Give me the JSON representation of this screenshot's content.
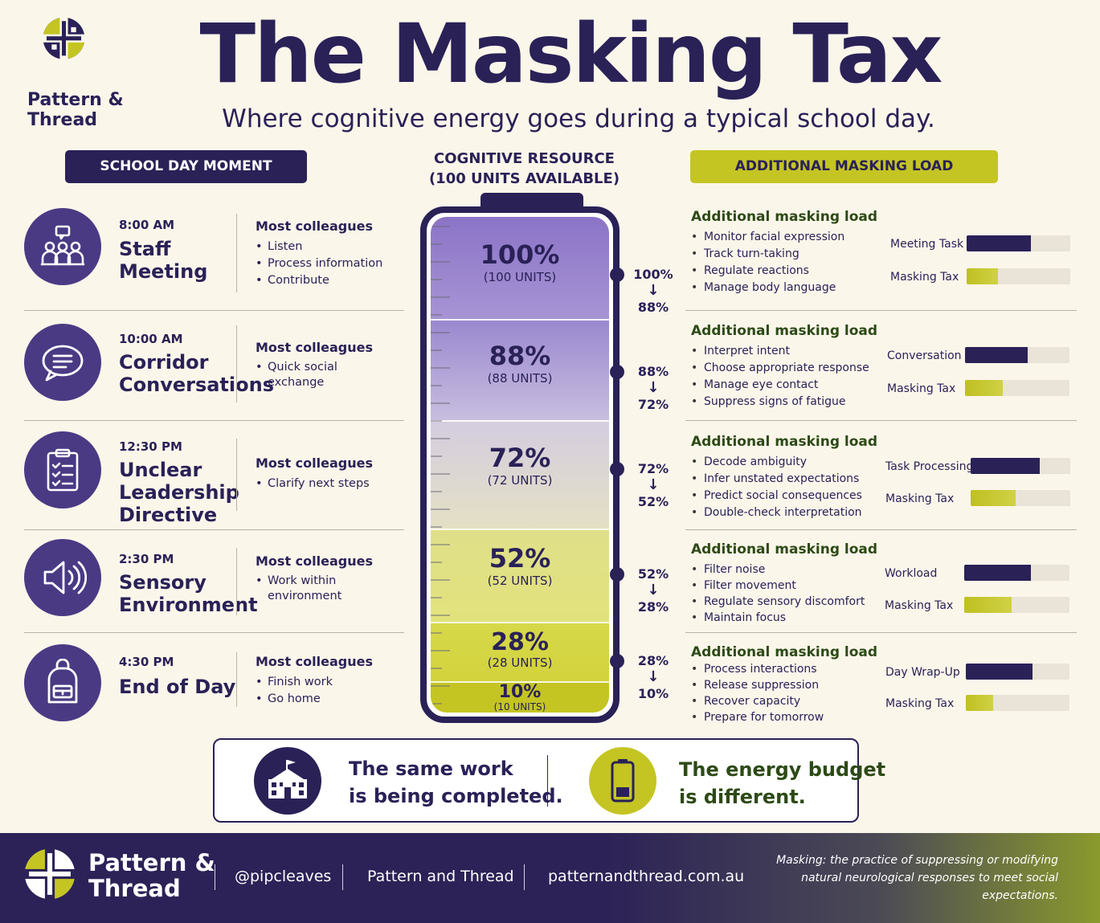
{
  "brand": {
    "name_line1": "Pattern &",
    "name_line2": "Thread"
  },
  "header": {
    "title": "The Masking Tax",
    "subtitle": "Where cognitive energy goes during a typical school day."
  },
  "columns": {
    "left": "SCHOOL DAY MOMENT",
    "middle_line1": "COGNITIVE RESOURCE",
    "middle_line2": "(100 UNITS AVAILABLE)",
    "right": "ADDITIONAL MASKING LOAD"
  },
  "moments": [
    {
      "time": "8:00 AM",
      "title": "Staff Meeting",
      "title_lines": [
        "Staff",
        "Meeting"
      ],
      "icon": "people-icon",
      "colleagues_heading": "Most colleagues",
      "colleagues": [
        "Listen",
        "Process information",
        "Contribute"
      ]
    },
    {
      "time": "10:00 AM",
      "title": "Corridor Conversations",
      "title_lines": [
        "Corridor",
        "Conversations"
      ],
      "icon": "chat-icon",
      "colleagues_heading": "Most colleagues",
      "colleagues": [
        "Quick social exchange"
      ]
    },
    {
      "time": "12:30 PM",
      "title": "Unclear Leadership Directive",
      "title_lines": [
        "Unclear",
        "Leadership",
        "Directive"
      ],
      "icon": "clipboard-icon",
      "colleagues_heading": "Most colleagues",
      "colleagues": [
        "Clarify next steps"
      ]
    },
    {
      "time": "2:30 PM",
      "title": "Sensory Environment",
      "title_lines": [
        "Sensory",
        "Environment"
      ],
      "icon": "speaker-icon",
      "colleagues_heading": "Most colleagues",
      "colleagues": [
        "Work within environment"
      ]
    },
    {
      "time": "4:30 PM",
      "title": "End of Day",
      "title_lines": [
        "End of Day"
      ],
      "icon": "backpack-icon",
      "colleagues_heading": "Most colleagues",
      "colleagues": [
        "Finish work",
        "Go home"
      ]
    }
  ],
  "battery": {
    "levels": [
      {
        "pct": "100%",
        "units": "(100 UNITS)"
      },
      {
        "pct": "88%",
        "units": "(88 UNITS)"
      },
      {
        "pct": "72%",
        "units": "(72 UNITS)"
      },
      {
        "pct": "52%",
        "units": "(52 UNITS)"
      },
      {
        "pct": "28%",
        "units": "(28 UNITS)"
      },
      {
        "pct": "10%",
        "units": "(10 UNITS)"
      }
    ],
    "transitions": [
      {
        "from": "100%",
        "arrow": "↓",
        "to": "88%"
      },
      {
        "from": "88%",
        "arrow": "↓",
        "to": "72%"
      },
      {
        "from": "72%",
        "arrow": "↓",
        "to": "52%"
      },
      {
        "from": "52%",
        "arrow": "↓",
        "to": "28%"
      },
      {
        "from": "28%",
        "arrow": "↓",
        "to": "10%"
      }
    ]
  },
  "masking": [
    {
      "heading": "Additional masking load",
      "items": [
        "Monitor facial expression",
        "Track turn-taking",
        "Regulate reactions",
        "Manage body language"
      ],
      "bars": [
        {
          "label": "Meeting Task",
          "value": 0.62
        },
        {
          "label": "Masking Tax",
          "value": 0.3
        }
      ]
    },
    {
      "heading": "Additional masking load",
      "items": [
        "Interpret intent",
        "Choose appropriate response",
        "Manage eye contact",
        "Suppress signs of fatigue"
      ],
      "bars": [
        {
          "label": "Conversation",
          "value": 0.6
        },
        {
          "label": "Masking Tax",
          "value": 0.36
        }
      ]
    },
    {
      "heading": "Additional masking load",
      "items": [
        "Decode ambiguity",
        "Infer unstated expectations",
        "Predict social consequences",
        "Double-check interpretation"
      ],
      "bars": [
        {
          "label": "Task Processing",
          "value": 0.69
        },
        {
          "label": "Masking Tax",
          "value": 0.45
        }
      ]
    },
    {
      "heading": "Additional masking load",
      "items": [
        "Filter noise",
        "Filter movement",
        "Regulate sensory discomfort",
        "Maintain focus"
      ],
      "bars": [
        {
          "label": "Workload",
          "value": 0.63
        },
        {
          "label": "Masking Tax",
          "value": 0.45
        }
      ]
    },
    {
      "heading": "Additional masking load",
      "items": [
        "Process interactions",
        "Release suppression",
        "Recover capacity",
        "Prepare for tomorrow"
      ],
      "bars": [
        {
          "label": "Day Wrap-Up",
          "value": 0.64
        },
        {
          "label": "Masking Tax",
          "value": 0.26
        }
      ]
    }
  ],
  "message": {
    "left_line1": "The same work",
    "left_line2": "is being completed.",
    "right_line1": "The energy budget",
    "right_line2": "is different."
  },
  "footer": {
    "brand_line1": "Pattern &",
    "brand_line2": "Thread",
    "handle": "@pipcleaves",
    "org": "Pattern and Thread",
    "website": "patternandthread.com.au",
    "note": "Masking: the practice of suppressing or modifying natural neurological responses to meet social expectations."
  },
  "colors": {
    "navy": "#2a2157",
    "purple": "#4a3a84",
    "lime": "#c4c523"
  }
}
